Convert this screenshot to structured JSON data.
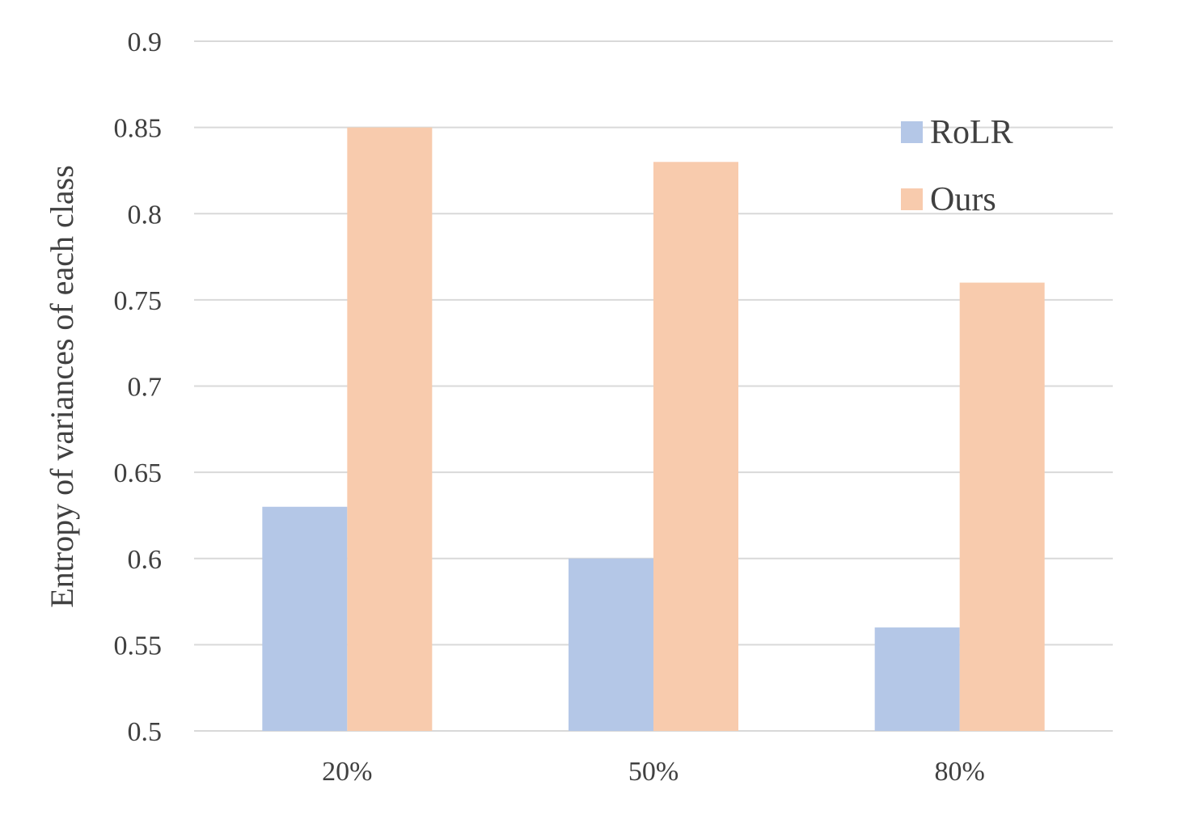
{
  "chart_data": {
    "type": "bar",
    "title": "",
    "xlabel": "",
    "ylabel": "Entropy of variances of each class",
    "categories": [
      "20%",
      "50%",
      "80%"
    ],
    "series": [
      {
        "name": "RoLR",
        "values": [
          0.63,
          0.6,
          0.56
        ],
        "color": "#b4c7e7"
      },
      {
        "name": "Ours",
        "values": [
          0.85,
          0.83,
          0.76
        ],
        "color": "#f8cbad"
      }
    ],
    "ylim": [
      0.5,
      0.9
    ],
    "yticks": [
      "0.5",
      "0.55",
      "0.6",
      "0.65",
      "0.7",
      "0.75",
      "0.8",
      "0.85",
      "0.9"
    ],
    "grid": true,
    "legend": "top-right"
  }
}
